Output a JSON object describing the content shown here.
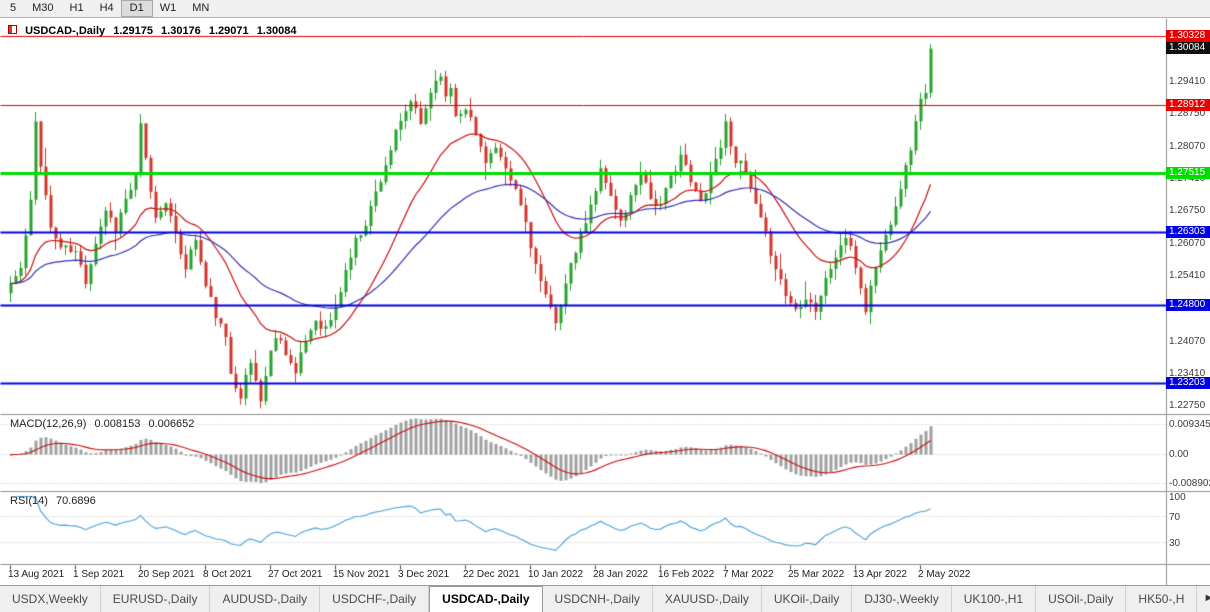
{
  "toolbar": {
    "timeframes": [
      {
        "label": "5"
      },
      {
        "label": "M30"
      },
      {
        "label": "H1"
      },
      {
        "label": "H4"
      },
      {
        "label": "D1",
        "active": true
      },
      {
        "label": "W1"
      },
      {
        "label": "MN"
      }
    ]
  },
  "header": {
    "open": "1.29175",
    "high": "1.30176",
    "low": "1.29071",
    "close": "1.30084"
  },
  "chart_data": [
    {
      "type": "candlestick",
      "title": "USDCAD-,Daily",
      "ylim": [
        1.2262,
        1.305
      ],
      "days": 185,
      "seed": 11,
      "up_color": "#28a32e",
      "down_color": "#d0372d",
      "ma_overlays": [
        {
          "period": 20,
          "color": "#cc1111"
        },
        {
          "period": 50,
          "color": "#3434b8"
        }
      ],
      "levels": [
        {
          "price": 1.30328,
          "label": "1.30328",
          "color": "#e60000",
          "width": 1
        },
        {
          "price": 1.28912,
          "label": "1.28912",
          "color": "#e60000",
          "width": 1
        },
        {
          "price": 1.27515,
          "label": "1.27515",
          "color": "#00dd00",
          "width": 3
        },
        {
          "price": 1.26303,
          "label": "1.26303",
          "color": "#0000e6",
          "width": 2
        },
        {
          "price": 1.248,
          "label": "1.24800",
          "color": "#0000e6",
          "width": 2
        },
        {
          "price": 1.23203,
          "label": "1.23203",
          "color": "#0000e6",
          "width": 2
        }
      ],
      "current_price": 1.30084,
      "current_price_label": "1.30084",
      "current_badge_color": "#101010",
      "y_axis_labels": [
        "1.29410",
        "1.28750",
        "1.28070",
        "1.27410",
        "1.26750",
        "1.26070",
        "1.25410",
        "1.24070",
        "1.23410",
        "1.22750"
      ],
      "x_ticks": [
        {
          "day": 0,
          "label": "13 Aug 2021"
        },
        {
          "day": 13,
          "label": "1 Sep 2021"
        },
        {
          "day": 26,
          "label": "20 Sep 2021"
        },
        {
          "day": 39,
          "label": "8 Oct 2021"
        },
        {
          "day": 52,
          "label": "27 Oct 2021"
        },
        {
          "day": 65,
          "label": "15 Nov 2021"
        },
        {
          "day": 78,
          "label": "3 Dec 2021"
        },
        {
          "day": 91,
          "label": "22 Dec 2021"
        },
        {
          "day": 104,
          "label": "10 Jan 2022"
        },
        {
          "day": 117,
          "label": "28 Jan 2022"
        },
        {
          "day": 130,
          "label": "16 Feb 2022"
        },
        {
          "day": 143,
          "label": "7 Mar 2022"
        },
        {
          "day": 156,
          "label": "25 Mar 2022"
        },
        {
          "day": 169,
          "label": "13 Apr 2022"
        },
        {
          "day": 182,
          "label": "2 May 2022"
        }
      ],
      "last_candle": {
        "open": 1.29175,
        "high": 1.30176,
        "low": 1.29071,
        "close": 1.30084
      },
      "close_waypoints": [
        [
          0,
          1.2525
        ],
        [
          2,
          1.2555
        ],
        [
          4,
          1.269
        ],
        [
          5,
          1.2858
        ],
        [
          6,
          1.2775
        ],
        [
          8,
          1.2638
        ],
        [
          10,
          1.26
        ],
        [
          13,
          1.2588
        ],
        [
          15,
          1.2532
        ],
        [
          17,
          1.2612
        ],
        [
          19,
          1.2678
        ],
        [
          21,
          1.264
        ],
        [
          23,
          1.2698
        ],
        [
          25,
          1.2742
        ],
        [
          26,
          1.2848
        ],
        [
          27,
          1.2778
        ],
        [
          29,
          1.2658
        ],
        [
          31,
          1.27
        ],
        [
          33,
          1.2618
        ],
        [
          35,
          1.2562
        ],
        [
          37,
          1.2618
        ],
        [
          39,
          1.2518
        ],
        [
          41,
          1.2462
        ],
        [
          43,
          1.2408
        ],
        [
          44,
          1.2342
        ],
        [
          46,
          1.2298
        ],
        [
          48,
          1.2362
        ],
        [
          50,
          1.2288
        ],
        [
          52,
          1.2382
        ],
        [
          53,
          1.2422
        ],
        [
          55,
          1.2388
        ],
        [
          57,
          1.2338
        ],
        [
          59,
          1.2408
        ],
        [
          61,
          1.2452
        ],
        [
          63,
          1.2432
        ],
        [
          65,
          1.2472
        ],
        [
          67,
          1.2552
        ],
        [
          69,
          1.2612
        ],
        [
          71,
          1.2652
        ],
        [
          73,
          1.2712
        ],
        [
          75,
          1.2772
        ],
        [
          77,
          1.2832
        ],
        [
          78,
          1.2852
        ],
        [
          80,
          1.2902
        ],
        [
          82,
          1.2852
        ],
        [
          84,
          1.2922
        ],
        [
          86,
          1.2962
        ],
        [
          87,
          1.2902
        ],
        [
          88,
          1.2932
        ],
        [
          89,
          1.2872
        ],
        [
          91,
          1.2892
        ],
        [
          93,
          1.2832
        ],
        [
          95,
          1.2782
        ],
        [
          97,
          1.2802
        ],
        [
          99,
          1.2752
        ],
        [
          101,
          1.2718
        ],
        [
          103,
          1.2652
        ],
        [
          105,
          1.2562
        ],
        [
          107,
          1.2492
        ],
        [
          109,
          1.2452
        ],
        [
          111,
          1.2522
        ],
        [
          113,
          1.2592
        ],
        [
          115,
          1.2652
        ],
        [
          117,
          1.2712
        ],
        [
          118,
          1.2772
        ],
        [
          120,
          1.2702
        ],
        [
          122,
          1.2652
        ],
        [
          124,
          1.2702
        ],
        [
          126,
          1.2762
        ],
        [
          128,
          1.2702
        ],
        [
          130,
          1.2682
        ],
        [
          132,
          1.2742
        ],
        [
          134,
          1.2792
        ],
        [
          136,
          1.2732
        ],
        [
          138,
          1.2692
        ],
        [
          140,
          1.2752
        ],
        [
          142,
          1.2812
        ],
        [
          143,
          1.2852
        ],
        [
          145,
          1.2782
        ],
        [
          147,
          1.2752
        ],
        [
          149,
          1.2682
        ],
        [
          151,
          1.2622
        ],
        [
          153,
          1.2562
        ],
        [
          155,
          1.2502
        ],
        [
          157,
          1.2472
        ],
        [
          159,
          1.2502
        ],
        [
          161,
          1.2472
        ],
        [
          163,
          1.2532
        ],
        [
          165,
          1.2582
        ],
        [
          167,
          1.2622
        ],
        [
          169,
          1.2562
        ],
        [
          171,
          1.2472
        ],
        [
          173,
          1.2562
        ],
        [
          175,
          1.2622
        ],
        [
          177,
          1.2692
        ],
        [
          179,
          1.2762
        ],
        [
          181,
          1.2852
        ],
        [
          182,
          1.2912
        ],
        [
          183,
          1.2918
        ],
        [
          184,
          1.30084
        ]
      ]
    },
    {
      "type": "bar",
      "title": "MACD(12,26,9)",
      "display_main": "0.008153",
      "display_signal": "0.006652",
      "params": [
        12,
        26,
        9
      ],
      "ylim": [
        -0.0105,
        0.0115
      ],
      "hist_color": "#a0a0a0",
      "signal_color": "#cc1111",
      "axis_labels": [
        {
          "text": "0.009345",
          "value": 0.009345
        },
        {
          "text": "0.00",
          "value": 0
        },
        {
          "text": "-0.008902",
          "value": -0.008902
        }
      ]
    },
    {
      "type": "line",
      "title": "RSI(14)",
      "display": "70.6896",
      "period": 14,
      "ylim": [
        0,
        100
      ],
      "level_lines": [
        70,
        30
      ],
      "color": "#4aa3dc",
      "axis_labels": [
        {
          "text": "100",
          "value": 100
        },
        {
          "text": "70",
          "value": 70
        },
        {
          "text": "30",
          "value": 30
        }
      ]
    }
  ],
  "tabs": {
    "scroll_icon": "►",
    "items": [
      {
        "label": "USDX,Weekly"
      },
      {
        "label": "EURUSD-,Daily"
      },
      {
        "label": "AUDUSD-,Daily"
      },
      {
        "label": "USDCHF-,Daily"
      },
      {
        "label": "USDCAD-,Daily",
        "active": true
      },
      {
        "label": "USDCNH-,Daily"
      },
      {
        "label": "XAUUSD-,Daily"
      },
      {
        "label": "UKOil-,Daily"
      },
      {
        "label": "DJ30-,Weekly"
      },
      {
        "label": "UK100-,H1"
      },
      {
        "label": "USOil-,Daily"
      },
      {
        "label": "HK50-,H"
      }
    ]
  }
}
